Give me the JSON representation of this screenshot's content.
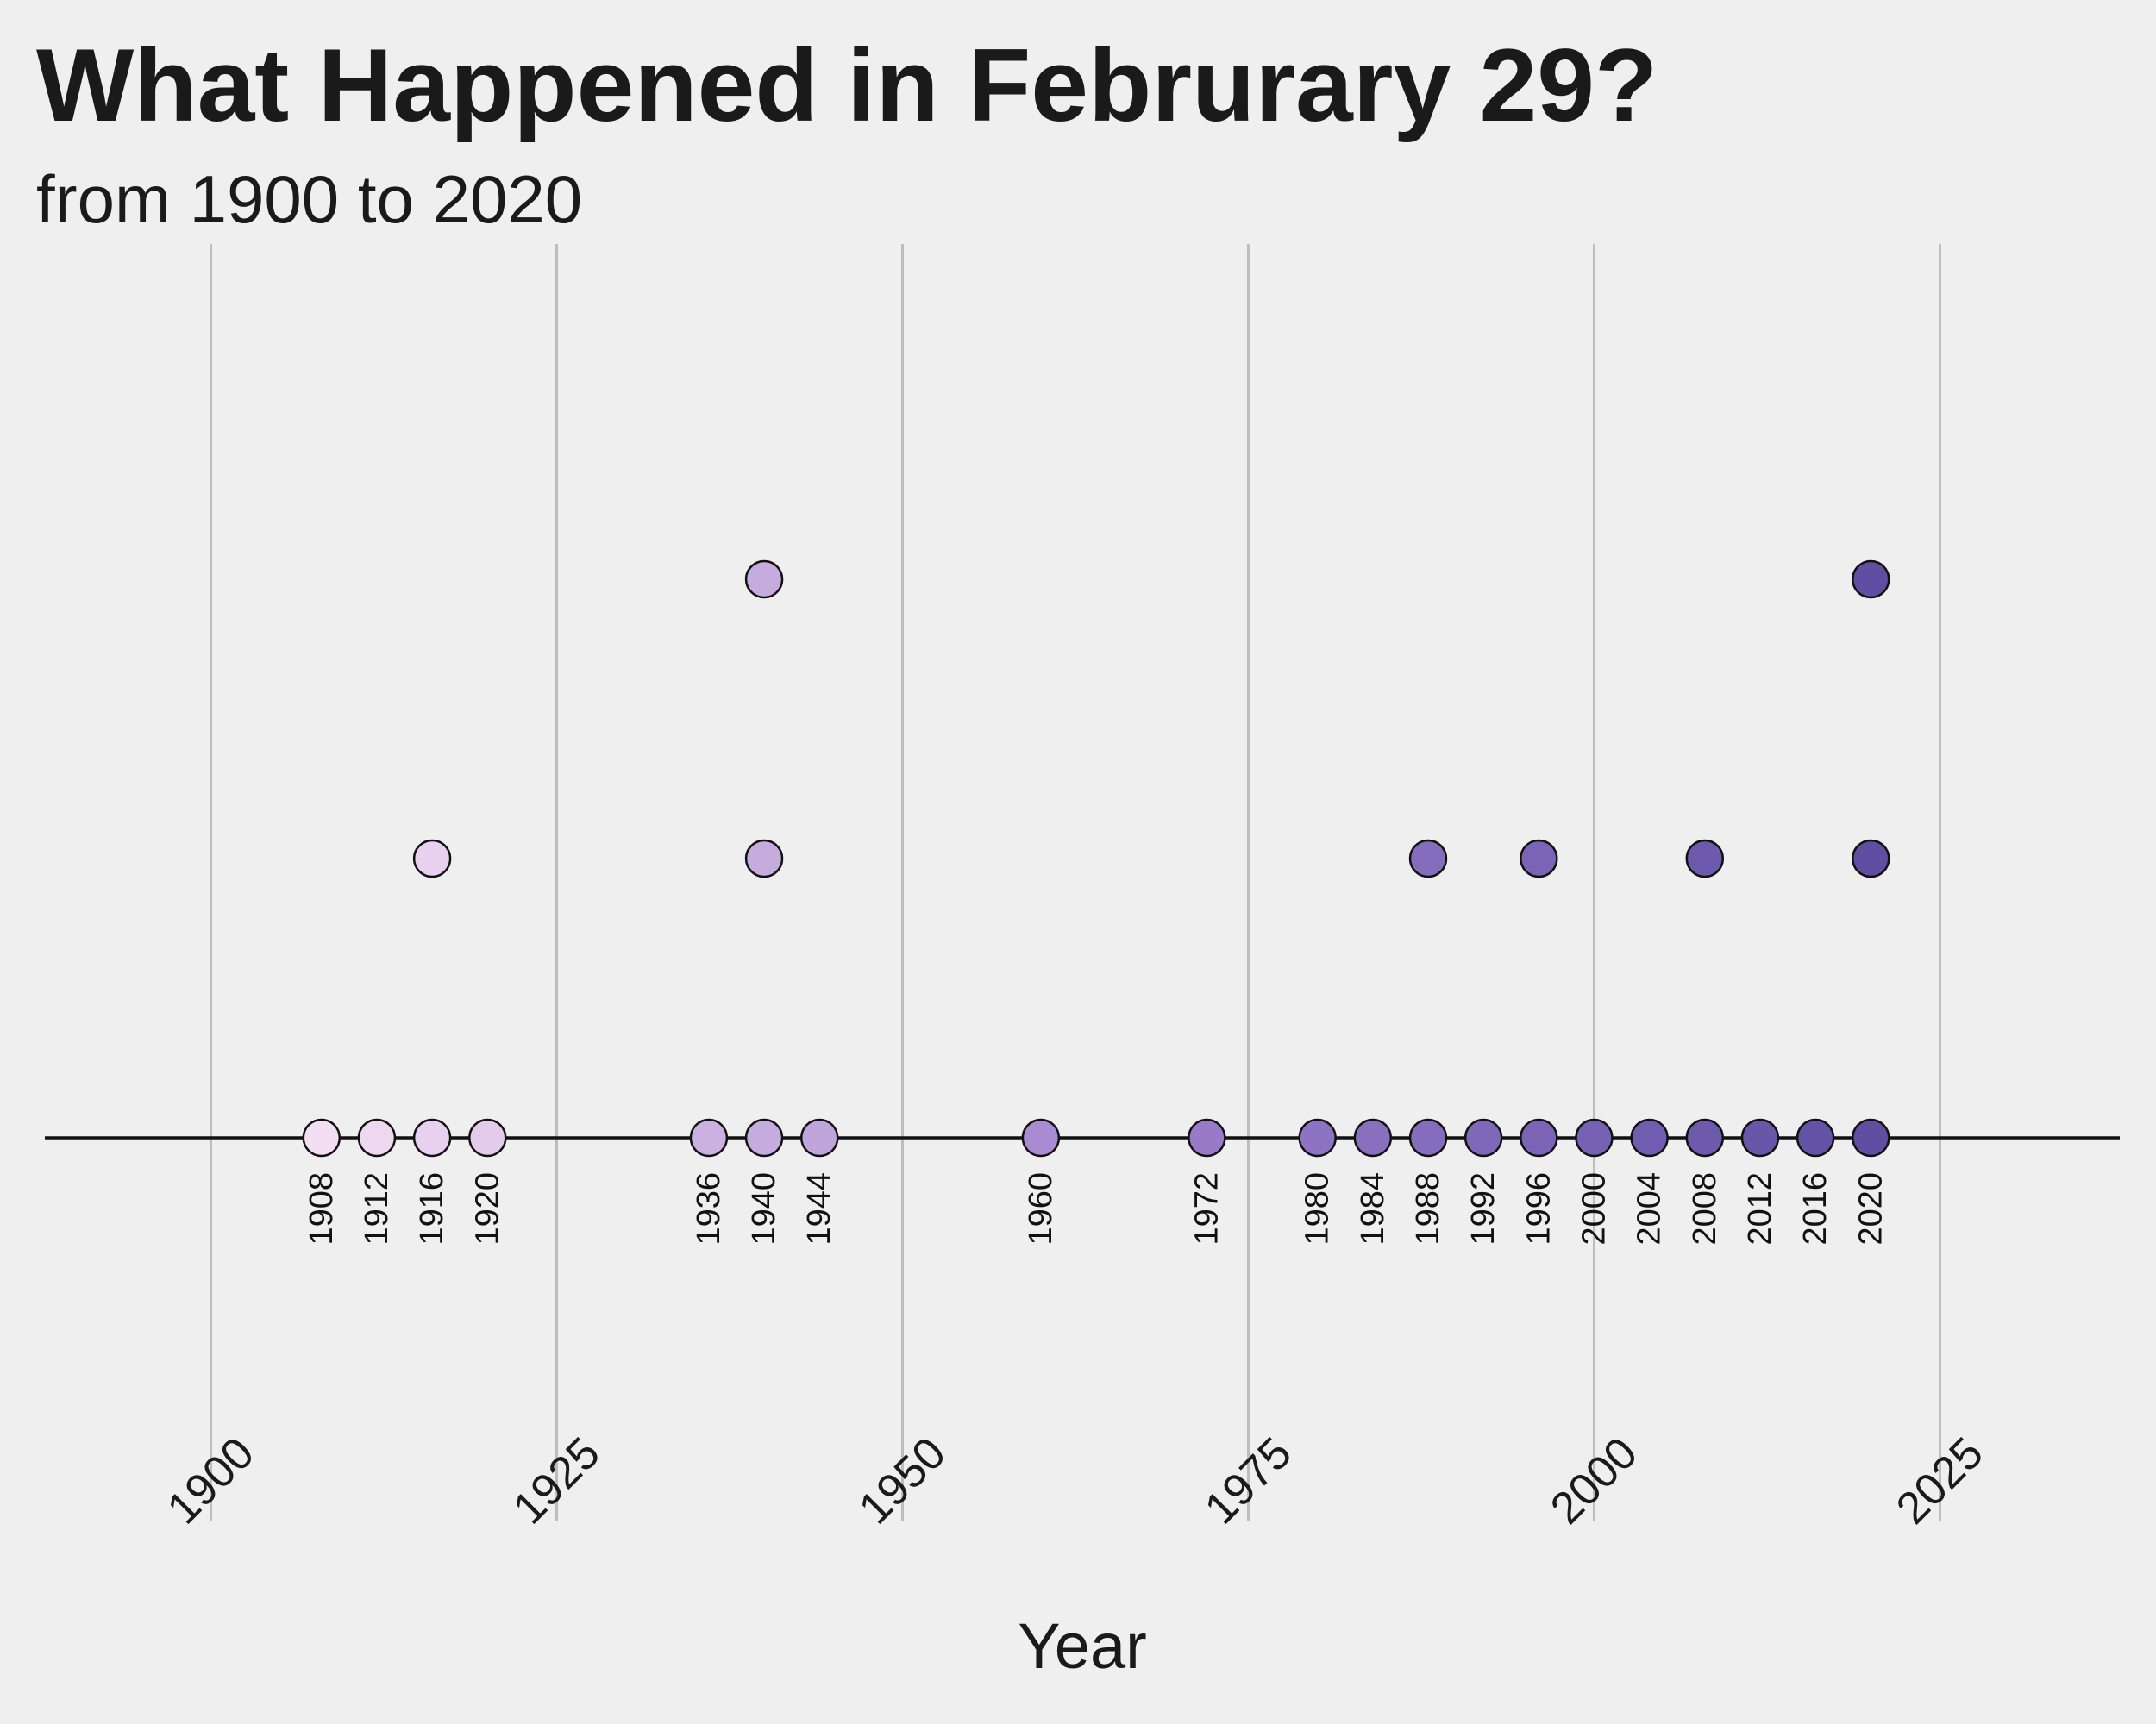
{
  "chart_data": {
    "type": "scatter",
    "title": "What Happened in Februrary 29?",
    "subtitle": "from 1900 to 2020",
    "xlabel": "Year",
    "ylabel": "",
    "xlim": [
      1888,
      2038
    ],
    "xticks": [
      1900,
      1925,
      1950,
      1975,
      2000,
      2025
    ],
    "grid": "vertical",
    "legend": "none",
    "baseline": true,
    "point_color_low": "#f3def3",
    "point_color_high": "#5e4fa2",
    "points": [
      {
        "x": 1908,
        "y": 0
      },
      {
        "x": 1912,
        "y": 0
      },
      {
        "x": 1916,
        "y": 0
      },
      {
        "x": 1916,
        "y": 1
      },
      {
        "x": 1920,
        "y": 0
      },
      {
        "x": 1936,
        "y": 0
      },
      {
        "x": 1940,
        "y": 0
      },
      {
        "x": 1940,
        "y": 1
      },
      {
        "x": 1940,
        "y": 2
      },
      {
        "x": 1944,
        "y": 0
      },
      {
        "x": 1960,
        "y": 0
      },
      {
        "x": 1972,
        "y": 0
      },
      {
        "x": 1980,
        "y": 0
      },
      {
        "x": 1984,
        "y": 0
      },
      {
        "x": 1988,
        "y": 0
      },
      {
        "x": 1988,
        "y": 1
      },
      {
        "x": 1992,
        "y": 0
      },
      {
        "x": 1996,
        "y": 0
      },
      {
        "x": 1996,
        "y": 1
      },
      {
        "x": 2000,
        "y": 0
      },
      {
        "x": 2004,
        "y": 0
      },
      {
        "x": 2008,
        "y": 0
      },
      {
        "x": 2008,
        "y": 1
      },
      {
        "x": 2012,
        "y": 0
      },
      {
        "x": 2016,
        "y": 0
      },
      {
        "x": 2020,
        "y": 0
      },
      {
        "x": 2020,
        "y": 1
      },
      {
        "x": 2020,
        "y": 2
      }
    ],
    "year_labels": [
      "1908",
      "1912",
      "1916",
      "1920",
      "1936",
      "1940",
      "1944",
      "1960",
      "1972",
      "1980",
      "1984",
      "1988",
      "1992",
      "1996",
      "2000",
      "2004",
      "2008",
      "2012",
      "2016",
      "2020"
    ]
  }
}
